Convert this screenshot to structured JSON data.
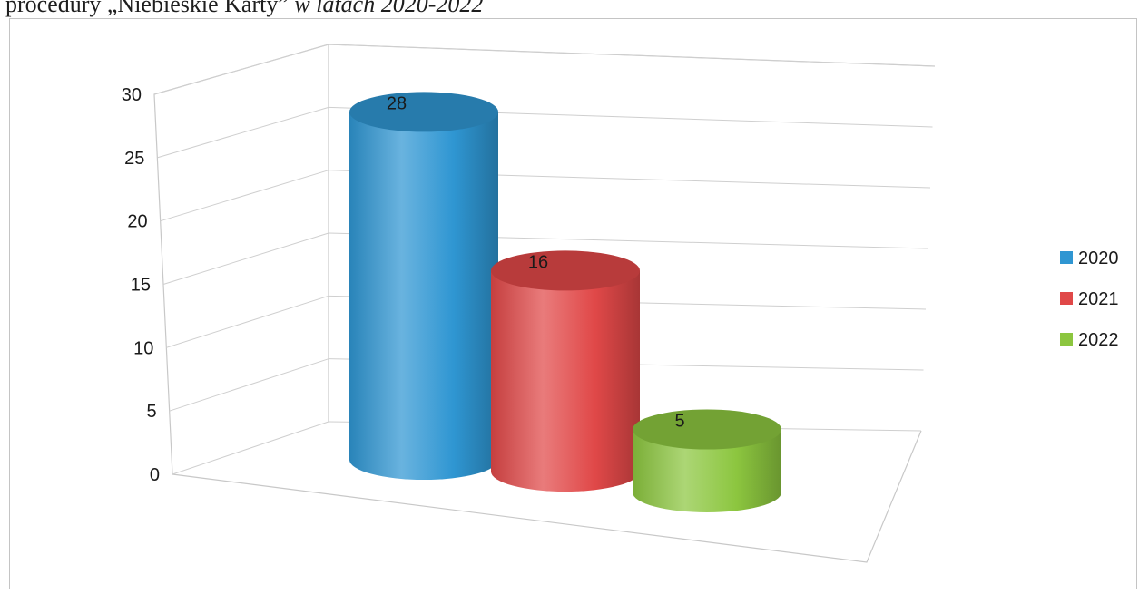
{
  "caption": {
    "main": "procedury „Niebieskie Karty”",
    "italic": " w latach 2020-2022"
  },
  "chart_data": {
    "type": "bar",
    "style": "3d-cylinder",
    "title": "",
    "xlabel": "",
    "ylabel": "",
    "ylim": [
      0,
      30
    ],
    "yticks": [
      0,
      5,
      10,
      15,
      20,
      25,
      30
    ],
    "grid": true,
    "legend_position": "right",
    "series": [
      {
        "name": "2020",
        "values": [
          28
        ],
        "color": "#2f96d2"
      },
      {
        "name": "2021",
        "values": [
          16
        ],
        "color": "#e04848"
      },
      {
        "name": "2022",
        "values": [
          5
        ],
        "color": "#8cc63f"
      }
    ],
    "data_labels": [
      "28",
      "16",
      "5"
    ]
  }
}
